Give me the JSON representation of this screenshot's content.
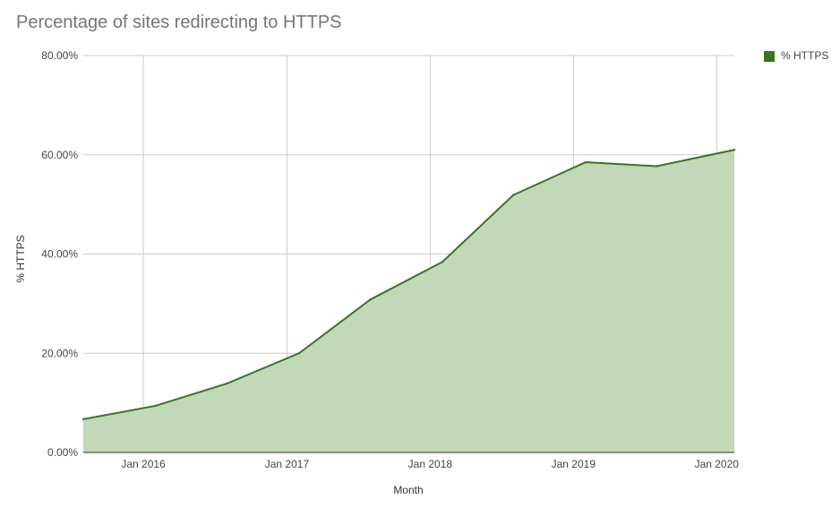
{
  "chart_data": {
    "type": "area",
    "title": "Percentage of sites redirecting to HTTPS",
    "xlabel": "Month",
    "ylabel": "% HTTPS",
    "ylim": [
      0,
      80
    ],
    "yticks": [
      "0.00%",
      "20.00%",
      "40.00%",
      "60.00%",
      "80.00%"
    ],
    "xticks": [
      {
        "label": "Jan 2016",
        "date": "2016-01-01"
      },
      {
        "label": "Jan 2017",
        "date": "2017-01-01"
      },
      {
        "label": "Jan 2018",
        "date": "2018-01-01"
      },
      {
        "label": "Jan 2019",
        "date": "2019-01-01"
      },
      {
        "label": "Jan 2020",
        "date": "2020-01-01"
      }
    ],
    "xlim": [
      "2015-08-01",
      "2020-02-15"
    ],
    "grid": true,
    "legend_position": "top-right",
    "series": [
      {
        "name": "% HTTPS",
        "color": "#38761d",
        "fill": "#c3d7b9",
        "points": [
          {
            "x": "2015-08-01",
            "y": 6.7
          },
          {
            "x": "2016-02-01",
            "y": 9.4
          },
          {
            "x": "2016-08-01",
            "y": 13.9
          },
          {
            "x": "2017-02-01",
            "y": 20.0
          },
          {
            "x": "2017-08-01",
            "y": 30.8
          },
          {
            "x": "2018-02-01",
            "y": 38.4
          },
          {
            "x": "2018-08-01",
            "y": 51.9
          },
          {
            "x": "2019-02-01",
            "y": 58.5
          },
          {
            "x": "2019-08-01",
            "y": 57.7
          },
          {
            "x": "2020-02-15",
            "y": 61.0
          }
        ]
      }
    ]
  }
}
